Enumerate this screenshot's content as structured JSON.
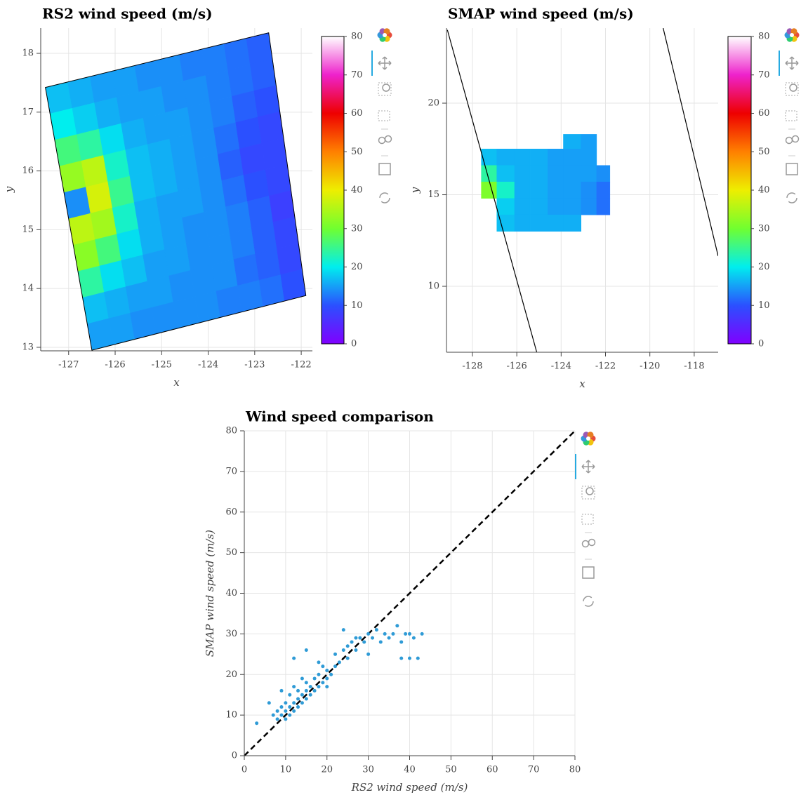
{
  "chart_data": [
    {
      "type": "heatmap",
      "title": "RS2 wind speed (m/s)",
      "x_label": "x",
      "y_label": "y",
      "xlim": [
        -127.6,
        -121.76
      ],
      "ylim": [
        12.94,
        18.43
      ],
      "xticks": [
        -127,
        -126,
        -125,
        -124,
        -123,
        -122
      ],
      "yticks": [
        13,
        14,
        15,
        16,
        17,
        18
      ],
      "grid": true,
      "quad": {
        "x": [
          -127.5,
          -122.7,
          -121.9,
          -126.5
        ],
        "y": [
          17.42,
          18.35,
          13.88,
          12.95
        ]
      },
      "z": [
        [
          17,
          16,
          15,
          15,
          14,
          14,
          13,
          13,
          12,
          11
        ],
        [
          20,
          18,
          16,
          15,
          15,
          14,
          14,
          13,
          12,
          11
        ],
        [
          26,
          24,
          19,
          16,
          15,
          15,
          14,
          13,
          11,
          10
        ],
        [
          33,
          36,
          22,
          17,
          16,
          15,
          14,
          12,
          10,
          9
        ],
        [
          14,
          38,
          25,
          17,
          16,
          15,
          14,
          11,
          9,
          9
        ],
        [
          36,
          34,
          22,
          16,
          15,
          15,
          14,
          12,
          10,
          9
        ],
        [
          32,
          26,
          19,
          16,
          15,
          14,
          14,
          13,
          11,
          8
        ],
        [
          24,
          19,
          17,
          15,
          15,
          14,
          14,
          13,
          11,
          9
        ],
        [
          17,
          16,
          15,
          15,
          14,
          14,
          14,
          12,
          11,
          9
        ],
        [
          15,
          15,
          14,
          14,
          14,
          14,
          13,
          13,
          12,
          10
        ]
      ],
      "clim": [
        0,
        80
      ],
      "colorbar_ticks": [
        0,
        10,
        20,
        30,
        40,
        50,
        60,
        70,
        80
      ],
      "palette": [
        "#8000ff",
        "#2b50ff",
        "#00eeee",
        "#70ff30",
        "#eeee00",
        "#ff8000",
        "#ee0000",
        "#ee22cc",
        "#ffffff"
      ]
    },
    {
      "type": "heatmap",
      "title": "SMAP wind speed (m/s)",
      "x_label": "x",
      "y_label": "y",
      "xlim": [
        -129.17,
        -116.92
      ],
      "ylim": [
        6.4,
        24.1
      ],
      "xticks": [
        -128,
        -126,
        -124,
        -122,
        -120,
        -118
      ],
      "yticks": [
        10,
        15,
        20
      ],
      "grid": true,
      "x_edges": [
        -127.6,
        -126.9,
        -126.1,
        -125.4,
        -124.6,
        -123.9,
        -123.1,
        -122.4,
        -121.8
      ],
      "y_edges": [
        18.3,
        17.5,
        16.6,
        15.7,
        14.8,
        13.9,
        13.0
      ],
      "z": [
        [
          null,
          null,
          null,
          null,
          null,
          16,
          15,
          null
        ],
        [
          17,
          16,
          16,
          16,
          15,
          15,
          15,
          null
        ],
        [
          24,
          17,
          16,
          16,
          15,
          15,
          15,
          14
        ],
        [
          31,
          22,
          16,
          16,
          15,
          15,
          14,
          12
        ],
        [
          null,
          18,
          16,
          16,
          15,
          15,
          14,
          12
        ],
        [
          null,
          17,
          16,
          16,
          16,
          16,
          null,
          null
        ]
      ],
      "lines": [
        {
          "x": [
            -129.13,
            -125.1
          ],
          "y": [
            24.0,
            6.4
          ]
        },
        {
          "x": [
            -119.4,
            -116.92
          ],
          "y": [
            24.1,
            11.65
          ]
        }
      ],
      "clim": [
        0,
        80
      ],
      "colorbar_ticks": [
        0,
        10,
        20,
        30,
        40,
        50,
        60,
        70,
        80
      ],
      "palette": [
        "#8000ff",
        "#2b50ff",
        "#00eeee",
        "#70ff30",
        "#eeee00",
        "#ff8000",
        "#ee0000",
        "#ee22cc",
        "#ffffff"
      ]
    },
    {
      "type": "scatter",
      "title": "Wind speed comparison",
      "x_label": "RS2 wind speed (m/s)",
      "y_label": "SMAP wind speed (m/s)",
      "xlim": [
        0,
        80
      ],
      "ylim": [
        0,
        80
      ],
      "xticks": [
        0,
        10,
        20,
        30,
        40,
        50,
        60,
        70,
        80
      ],
      "yticks": [
        0,
        10,
        20,
        30,
        40,
        50,
        60,
        70,
        80
      ],
      "grid": true,
      "color": "#2f9bd6",
      "x": [
        3,
        6,
        7,
        8,
        8,
        9,
        9,
        10,
        10,
        10,
        11,
        11,
        11,
        12,
        12,
        12,
        13,
        13,
        13,
        14,
        14,
        14,
        15,
        15,
        15,
        16,
        16,
        17,
        17,
        18,
        18,
        19,
        19,
        20,
        20,
        21,
        22,
        22,
        23,
        24,
        25,
        25,
        26,
        27,
        28,
        29,
        30,
        31,
        32,
        33,
        34,
        35,
        36,
        37,
        38,
        39,
        40,
        41,
        42,
        43,
        38,
        40,
        24,
        12,
        15,
        18,
        20,
        9,
        30,
        27
      ],
      "y": [
        8,
        13,
        10,
        9,
        11,
        10,
        12,
        9,
        11,
        13,
        10,
        12,
        15,
        11,
        13,
        17,
        12,
        14,
        16,
        13,
        15,
        19,
        14,
        16,
        18,
        15,
        17,
        16,
        19,
        17,
        20,
        18,
        22,
        19,
        21,
        20,
        22,
        25,
        23,
        26,
        27,
        24,
        28,
        26,
        29,
        28,
        30,
        29,
        31,
        28,
        30,
        29,
        30,
        32,
        28,
        30,
        30,
        29,
        24,
        30,
        24,
        24,
        31,
        24,
        26,
        23,
        17,
        16,
        25,
        29
      ],
      "reference_line": {
        "x": [
          0,
          80
        ],
        "y": [
          0,
          80
        ]
      }
    }
  ]
}
